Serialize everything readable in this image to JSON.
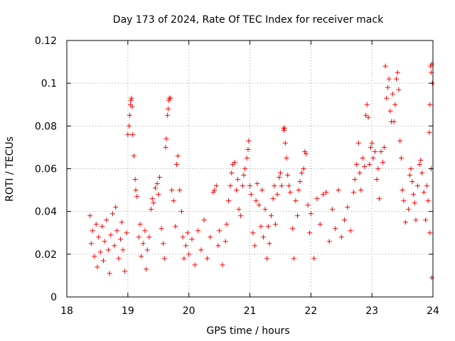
{
  "chart_data": {
    "type": "scatter",
    "title": "Day 173 of 2024, Rate Of TEC Index for receiver mack",
    "xlabel": "GPS time / hours",
    "ylabel": "ROTI / TECUs",
    "xlim": [
      18,
      24
    ],
    "ylim": [
      0,
      0.12
    ],
    "xticks": [
      18,
      19,
      20,
      21,
      22,
      23,
      24
    ],
    "xtick_labels": [
      "18",
      "19",
      "20",
      "21",
      "22",
      "23",
      "24"
    ],
    "yticks": [
      0,
      0.02,
      0.04,
      0.06,
      0.08,
      0.1,
      0.12
    ],
    "ytick_labels": [
      "0",
      "0.02",
      "0.04",
      "0.06",
      "0.08",
      "0.1",
      "0.12"
    ],
    "grid": true,
    "marker": "+",
    "color": "#ff0000",
    "series": [
      {
        "name": "ROTI",
        "points": [
          [
            18.38,
            0.038
          ],
          [
            18.4,
            0.025
          ],
          [
            18.42,
            0.031
          ],
          [
            18.45,
            0.019
          ],
          [
            18.48,
            0.034
          ],
          [
            18.5,
            0.014
          ],
          [
            18.52,
            0.028
          ],
          [
            18.55,
            0.021
          ],
          [
            18.58,
            0.033
          ],
          [
            18.6,
            0.017
          ],
          [
            18.62,
            0.026
          ],
          [
            18.65,
            0.036
          ],
          [
            18.68,
            0.022
          ],
          [
            18.7,
            0.011
          ],
          [
            18.72,
            0.029
          ],
          [
            18.75,
            0.039
          ],
          [
            18.78,
            0.024
          ],
          [
            18.8,
            0.042
          ],
          [
            18.82,
            0.031
          ],
          [
            18.85,
            0.018
          ],
          [
            18.88,
            0.027
          ],
          [
            18.9,
            0.035
          ],
          [
            18.92,
            0.022
          ],
          [
            18.95,
            0.012
          ],
          [
            18.98,
            0.03
          ],
          [
            19.0,
            0.076
          ],
          [
            19.02,
            0.08
          ],
          [
            19.03,
            0.085
          ],
          [
            19.04,
            0.09
          ],
          [
            19.05,
            0.092
          ],
          [
            19.06,
            0.093
          ],
          [
            19.07,
            0.089
          ],
          [
            19.08,
            0.076
          ],
          [
            19.1,
            0.066
          ],
          [
            19.12,
            0.055
          ],
          [
            19.13,
            0.05
          ],
          [
            19.15,
            0.047
          ],
          [
            19.18,
            0.028
          ],
          [
            19.2,
            0.034
          ],
          [
            19.22,
            0.019
          ],
          [
            19.25,
            0.025
          ],
          [
            19.28,
            0.031
          ],
          [
            19.3,
            0.013
          ],
          [
            19.32,
            0.022
          ],
          [
            19.35,
            0.028
          ],
          [
            19.38,
            0.041
          ],
          [
            19.4,
            0.046
          ],
          [
            19.42,
            0.044
          ],
          [
            19.45,
            0.051
          ],
          [
            19.48,
            0.053
          ],
          [
            19.5,
            0.048
          ],
          [
            19.52,
            0.056
          ],
          [
            19.55,
            0.032
          ],
          [
            19.58,
            0.025
          ],
          [
            19.6,
            0.018
          ],
          [
            19.62,
            0.07
          ],
          [
            19.63,
            0.074
          ],
          [
            19.65,
            0.085
          ],
          [
            19.66,
            0.088
          ],
          [
            19.67,
            0.092
          ],
          [
            19.68,
            0.093
          ],
          [
            19.7,
            0.093
          ],
          [
            19.72,
            0.05
          ],
          [
            19.75,
            0.045
          ],
          [
            19.78,
            0.033
          ],
          [
            19.8,
            0.062
          ],
          [
            19.82,
            0.066
          ],
          [
            19.85,
            0.05
          ],
          [
            19.88,
            0.04
          ],
          [
            19.9,
            0.028
          ],
          [
            19.92,
            0.018
          ],
          [
            19.95,
            0.024
          ],
          [
            19.98,
            0.03
          ],
          [
            20.0,
            0.02
          ],
          [
            20.05,
            0.027
          ],
          [
            20.1,
            0.015
          ],
          [
            20.15,
            0.031
          ],
          [
            20.2,
            0.022
          ],
          [
            20.25,
            0.036
          ],
          [
            20.3,
            0.018
          ],
          [
            20.35,
            0.028
          ],
          [
            20.4,
            0.049
          ],
          [
            20.42,
            0.05
          ],
          [
            20.45,
            0.052
          ],
          [
            20.48,
            0.024
          ],
          [
            20.5,
            0.031
          ],
          [
            20.55,
            0.015
          ],
          [
            20.6,
            0.026
          ],
          [
            20.62,
            0.034
          ],
          [
            20.65,
            0.045
          ],
          [
            20.68,
            0.052
          ],
          [
            20.7,
            0.058
          ],
          [
            20.72,
            0.062
          ],
          [
            20.75,
            0.063
          ],
          [
            20.78,
            0.05
          ],
          [
            20.8,
            0.055
          ],
          [
            20.82,
            0.041
          ],
          [
            20.85,
            0.038
          ],
          [
            20.88,
            0.052
          ],
          [
            20.9,
            0.057
          ],
          [
            20.92,
            0.06
          ],
          [
            20.95,
            0.065
          ],
          [
            20.97,
            0.069
          ],
          [
            20.98,
            0.073
          ],
          [
            21.0,
            0.052
          ],
          [
            21.02,
            0.048
          ],
          [
            21.05,
            0.03
          ],
          [
            21.08,
            0.024
          ],
          [
            21.1,
            0.045
          ],
          [
            21.12,
            0.053
          ],
          [
            21.15,
            0.043
          ],
          [
            21.18,
            0.033
          ],
          [
            21.2,
            0.05
          ],
          [
            21.22,
            0.028
          ],
          [
            21.25,
            0.041
          ],
          [
            21.28,
            0.018
          ],
          [
            21.3,
            0.033
          ],
          [
            21.32,
            0.025
          ],
          [
            21.35,
            0.038
          ],
          [
            21.38,
            0.046
          ],
          [
            21.4,
            0.052
          ],
          [
            21.42,
            0.034
          ],
          [
            21.45,
            0.048
          ],
          [
            21.48,
            0.056
          ],
          [
            21.5,
            0.058
          ],
          [
            21.52,
            0.052
          ],
          [
            21.55,
            0.079
          ],
          [
            21.56,
            0.078
          ],
          [
            21.57,
            0.079
          ],
          [
            21.58,
            0.072
          ],
          [
            21.6,
            0.065
          ],
          [
            21.62,
            0.057
          ],
          [
            21.64,
            0.052
          ],
          [
            21.66,
            0.049
          ],
          [
            21.7,
            0.032
          ],
          [
            21.72,
            0.018
          ],
          [
            21.75,
            0.045
          ],
          [
            21.78,
            0.038
          ],
          [
            21.8,
            0.05
          ],
          [
            21.82,
            0.054
          ],
          [
            21.85,
            0.058
          ],
          [
            21.88,
            0.06
          ],
          [
            21.9,
            0.068
          ],
          [
            21.92,
            0.067
          ],
          [
            21.95,
            0.043
          ],
          [
            21.98,
            0.03
          ],
          [
            22.0,
            0.039
          ],
          [
            22.05,
            0.018
          ],
          [
            22.1,
            0.046
          ],
          [
            22.15,
            0.034
          ],
          [
            22.2,
            0.048
          ],
          [
            22.25,
            0.049
          ],
          [
            22.3,
            0.026
          ],
          [
            22.35,
            0.041
          ],
          [
            22.4,
            0.032
          ],
          [
            22.45,
            0.05
          ],
          [
            22.5,
            0.028
          ],
          [
            22.55,
            0.036
          ],
          [
            22.6,
            0.042
          ],
          [
            22.65,
            0.031
          ],
          [
            22.7,
            0.049
          ],
          [
            22.72,
            0.055
          ],
          [
            22.75,
            0.062
          ],
          [
            22.78,
            0.072
          ],
          [
            22.8,
            0.058
          ],
          [
            22.82,
            0.05
          ],
          [
            22.85,
            0.065
          ],
          [
            22.88,
            0.061
          ],
          [
            22.9,
            0.085
          ],
          [
            22.92,
            0.09
          ],
          [
            22.94,
            0.084
          ],
          [
            22.96,
            0.062
          ],
          [
            22.98,
            0.07
          ],
          [
            23.0,
            0.072
          ],
          [
            23.02,
            0.065
          ],
          [
            23.05,
            0.068
          ],
          [
            23.08,
            0.055
          ],
          [
            23.1,
            0.06
          ],
          [
            23.12,
            0.046
          ],
          [
            23.15,
            0.068
          ],
          [
            23.18,
            0.063
          ],
          [
            23.2,
            0.07
          ],
          [
            23.22,
            0.108
          ],
          [
            23.24,
            0.093
          ],
          [
            23.26,
            0.098
          ],
          [
            23.28,
            0.102
          ],
          [
            23.3,
            0.087
          ],
          [
            23.32,
            0.082
          ],
          [
            23.34,
            0.095
          ],
          [
            23.36,
            0.082
          ],
          [
            23.38,
            0.09
          ],
          [
            23.4,
            0.102
          ],
          [
            23.42,
            0.105
          ],
          [
            23.44,
            0.097
          ],
          [
            23.46,
            0.073
          ],
          [
            23.48,
            0.065
          ],
          [
            23.5,
            0.05
          ],
          [
            23.52,
            0.045
          ],
          [
            23.55,
            0.035
          ],
          [
            23.6,
            0.041
          ],
          [
            23.62,
            0.057
          ],
          [
            23.64,
            0.06
          ],
          [
            23.66,
            0.054
          ],
          [
            23.68,
            0.048
          ],
          [
            23.7,
            0.044
          ],
          [
            23.72,
            0.036
          ],
          [
            23.75,
            0.052
          ],
          [
            23.78,
            0.062
          ],
          [
            23.8,
            0.064
          ],
          [
            23.82,
            0.058
          ],
          [
            23.85,
            0.049
          ],
          [
            23.88,
            0.036
          ],
          [
            23.9,
            0.052
          ],
          [
            23.92,
            0.045
          ],
          [
            23.94,
            0.077
          ],
          [
            23.95,
            0.09
          ],
          [
            23.96,
            0.108
          ],
          [
            23.97,
            0.105
          ],
          [
            23.98,
            0.109
          ],
          [
            23.99,
            0.1
          ],
          [
            23.97,
            0.06
          ],
          [
            23.95,
            0.03
          ],
          [
            23.98,
            0.009
          ]
        ]
      }
    ]
  }
}
